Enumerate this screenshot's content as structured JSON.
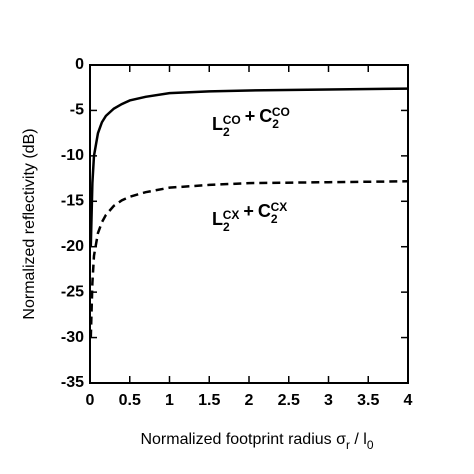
{
  "chart_data": {
    "type": "line",
    "xlabel": [
      "Normalized footprint radius σ",
      "r",
      " / l",
      "0"
    ],
    "ylabel": "Normalized reflectivity (dB)",
    "x": [
      0.01,
      0.03,
      0.05,
      0.1,
      0.15,
      0.2,
      0.3,
      0.4,
      0.5,
      0.7,
      1,
      1.5,
      2,
      3,
      4
    ],
    "series": [
      {
        "color": "#000000",
        "dashed": false,
        "values": [
          -20,
          -13,
          -10,
          -7.5,
          -6.3,
          -5.6,
          -4.8,
          -4.3,
          -3.9,
          -3.5,
          -3.1,
          -2.9,
          -2.8,
          -2.7,
          -2.6
        ]
      },
      {
        "color": "#000000",
        "dashed": true,
        "values": [
          -30,
          -24,
          -21,
          -18.5,
          -17.3,
          -16.5,
          -15.5,
          -14.9,
          -14.5,
          -14,
          -13.5,
          -13.2,
          -13,
          -12.9,
          -12.8
        ]
      }
    ],
    "annotations": [
      {
        "parts": [
          "L",
          "2",
          "CO",
          "+",
          "C",
          "2",
          "CO"
        ]
      },
      {
        "parts": [
          "L",
          "2",
          "CX",
          "+",
          "C",
          "2",
          "CX"
        ]
      }
    ],
    "xlim": [
      0,
      4
    ],
    "xticks": [
      0,
      0.5,
      1,
      1.5,
      2,
      2.5,
      3,
      3.5,
      4
    ],
    "ylim": [
      -35,
      0
    ],
    "yticks": [
      0,
      -5,
      -10,
      -15,
      -20,
      -25,
      -30,
      -35
    ]
  }
}
